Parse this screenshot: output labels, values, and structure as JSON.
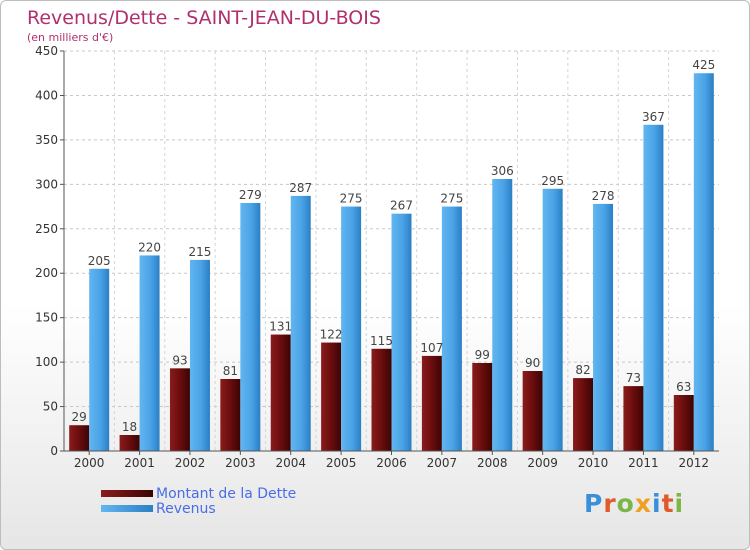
{
  "title": "Revenus/Dette - SAINT-JEAN-DU-BOIS",
  "subtitle": "(en milliers d'€)",
  "logo": {
    "text": "Proxiti",
    "letters": [
      {
        "ch": "P",
        "color": "#3a8fd9"
      },
      {
        "ch": "r",
        "color": "#e05a2b"
      },
      {
        "ch": "o",
        "color": "#7ab648"
      },
      {
        "ch": "x",
        "color": "#f0a020"
      },
      {
        "ch": "i",
        "color": "#3a8fd9"
      },
      {
        "ch": "t",
        "color": "#e05a2b"
      },
      {
        "ch": "i",
        "color": "#7ab648"
      }
    ]
  },
  "legend": [
    {
      "label": "Montant de la Dette",
      "color": "#7a1010"
    },
    {
      "label": "Revenus",
      "color": "#4da6e8"
    }
  ],
  "chart_data": {
    "type": "bar",
    "title": "Revenus/Dette - SAINT-JEAN-DU-BOIS",
    "subtitle": "(en milliers d'€)",
    "categories": [
      "2000",
      "2001",
      "2002",
      "2003",
      "2004",
      "2005",
      "2006",
      "2007",
      "2008",
      "2009",
      "2010",
      "2011",
      "2012"
    ],
    "series": [
      {
        "name": "Montant de la Dette",
        "color": "#7a1010",
        "values": [
          29,
          18,
          93,
          81,
          131,
          122,
          115,
          107,
          99,
          90,
          82,
          73,
          63
        ]
      },
      {
        "name": "Revenus",
        "color": "#4da6e8",
        "values": [
          205,
          220,
          215,
          279,
          287,
          275,
          267,
          275,
          306,
          295,
          278,
          367,
          425
        ]
      }
    ],
    "ylim": [
      0,
      450
    ],
    "yticks": [
      0,
      50,
      100,
      150,
      200,
      250,
      300,
      350,
      400,
      450
    ],
    "grid": true,
    "legend_position": "bottom-left",
    "data_labels": true
  }
}
